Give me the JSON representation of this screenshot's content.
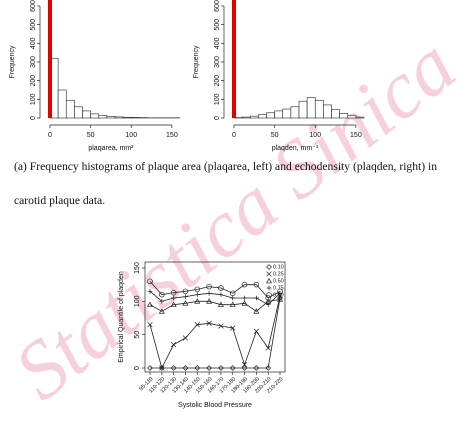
{
  "watermark": "Statistica Sinica",
  "caption": "(a) Frequency histograms of plaque area (plaqarea, left) and echodensity (plaqden, right) in carotid plaque data.",
  "chart_data": [
    {
      "type": "histogram",
      "ylabel": "Frequency",
      "xlabel": "plaqarea, mm²",
      "bins": [
        0,
        10,
        20,
        30,
        40,
        50,
        60,
        70,
        80,
        90,
        100,
        110,
        120,
        130,
        140,
        150,
        160
      ],
      "values": [
        320,
        150,
        95,
        60,
        38,
        22,
        14,
        9,
        6,
        4,
        3,
        2,
        1,
        1,
        1,
        1
      ],
      "xlim": [
        0,
        160
      ],
      "xticks": [
        0,
        50,
        100,
        150
      ],
      "ylim": [
        0,
        600
      ],
      "yticks": [
        0,
        100,
        200,
        300,
        400,
        500,
        600
      ],
      "vline": 0,
      "vline_color": "#e00000",
      "color": "#ffffff"
    },
    {
      "type": "histogram",
      "ylabel": "Frequency",
      "xlabel": "plaqden, mm⁻³",
      "bins": [
        0,
        10,
        20,
        30,
        40,
        50,
        60,
        70,
        80,
        90,
        100,
        110,
        120,
        130,
        140,
        150,
        160
      ],
      "values": [
        2,
        5,
        10,
        18,
        28,
        38,
        48,
        60,
        90,
        110,
        95,
        70,
        45,
        25,
        12,
        5
      ],
      "xlim": [
        0,
        160
      ],
      "xticks": [
        0,
        50,
        100,
        150
      ],
      "ylim": [
        0,
        600
      ],
      "yticks": [
        0,
        100,
        200,
        300,
        400,
        500,
        600
      ],
      "vline": 0,
      "vline_color": "#e00000",
      "color": "#ffffff"
    },
    {
      "type": "line",
      "ylabel": "Empirical Quantile of plaqden",
      "xlabel": "Systolic Blood Pressure",
      "categories": [
        "95-110",
        "110-120",
        "120-130",
        "130-140",
        "140-150",
        "150-160",
        "160-170",
        "170-180",
        "180-190",
        "190-200",
        "200-210",
        "210-220"
      ],
      "ylim": [
        -6,
        159
      ],
      "yticks": [
        0,
        50,
        100,
        150
      ],
      "legend": "top-right",
      "series": [
        {
          "name": "0.10",
          "marker": "diamond",
          "color": "#222222",
          "values": [
            0,
            0,
            0,
            0,
            0,
            0,
            0,
            0,
            0,
            0,
            0,
            105
          ]
        },
        {
          "name": "0.25",
          "marker": "cross",
          "color": "#222222",
          "values": [
            65,
            0,
            35,
            45,
            65,
            67,
            63,
            60,
            5,
            55,
            30,
            108
          ]
        },
        {
          "name": "0.50",
          "marker": "triangle",
          "color": "#222222",
          "values": [
            95,
            85,
            95,
            97,
            100,
            100,
            95,
            95,
            97,
            85,
            100,
            103
          ]
        },
        {
          "name": "0.75",
          "marker": "plus",
          "color": "#222222",
          "values": [
            115,
            100,
            105,
            107,
            110,
            112,
            110,
            105,
            105,
            105,
            95,
            112
          ]
        },
        {
          "name": "0.90",
          "marker": "circle",
          "color": "#222222",
          "values": [
            130,
            110,
            113,
            115,
            118,
            122,
            120,
            112,
            125,
            125,
            105,
            115
          ]
        }
      ]
    }
  ]
}
